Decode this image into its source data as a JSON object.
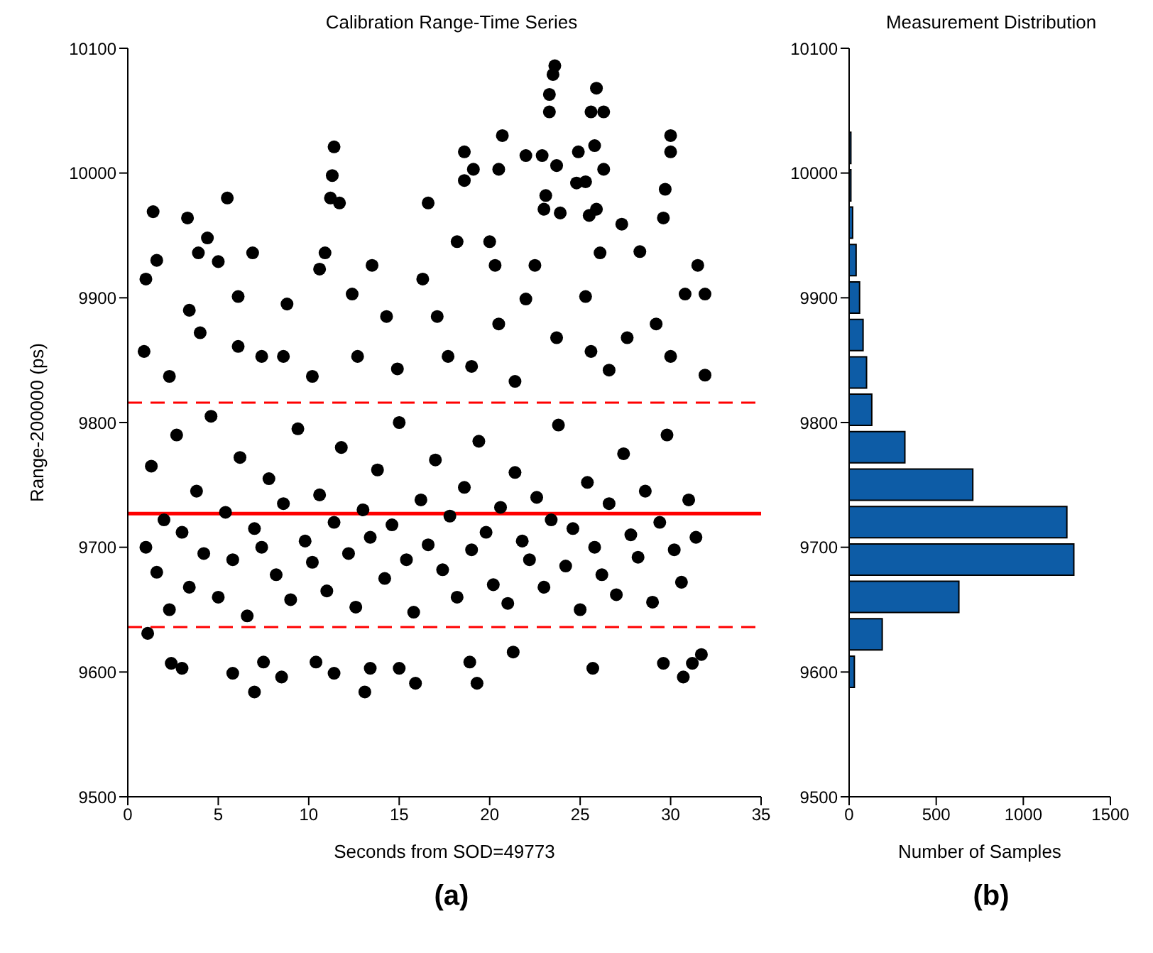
{
  "chart_data": [
    {
      "type": "scatter",
      "title": "Calibration Range-Time Series",
      "xlabel": "Seconds from SOD=49773",
      "ylabel": "Range-200000 (ps)",
      "color": "#000000",
      "marker": "circle",
      "xlim": [
        0,
        35
      ],
      "xticks": [
        0,
        5,
        10,
        15,
        20,
        25,
        30,
        35
      ],
      "ylim": [
        9500,
        10100
      ],
      "yticks": [
        9500,
        9600,
        9700,
        9800,
        9900,
        10000,
        10100
      ],
      "x": [
        23.6,
        23.5,
        23.3,
        23.3,
        25.9,
        25.6,
        26.3,
        25.8,
        26.3,
        20.7,
        30.0,
        30.0,
        11.4,
        11.3,
        11.2,
        11.7,
        5.5,
        1.4,
        3.3,
        18.6,
        18.6,
        19.1,
        20.5,
        22.0,
        22.9,
        23.7,
        24.9,
        24.8,
        25.3,
        23.0,
        23.1,
        25.5,
        29.7,
        29.6,
        16.6,
        23.9,
        25.9,
        4.4,
        3.9,
        6.9,
        5.0,
        1.6,
        1.0,
        10.9,
        10.6,
        13.5,
        16.3,
        18.2,
        20.0,
        20.3,
        22.5,
        26.1,
        28.3,
        31.5,
        31.9,
        27.3,
        22.0,
        3.4,
        6.1,
        8.8,
        12.4,
        14.3,
        17.1,
        20.5,
        25.3,
        29.2,
        30.8,
        0.9,
        4.0,
        6.1,
        8.6,
        10.2,
        12.7,
        14.9,
        17.7,
        19.0,
        21.4,
        23.7,
        25.6,
        27.6,
        30.0,
        31.9,
        2.3,
        7.4,
        26.6,
        7.0,
        13.1,
        15.9,
        19.3,
        5.8,
        8.5,
        11.4,
        25.7,
        30.7,
        31.2,
        2.4,
        3.0,
        10.4,
        13.4,
        15.0,
        21.3,
        29.6,
        7.5,
        1.1,
        31.7,
        18.9,
        1.0,
        1.3,
        1.6,
        2.0,
        2.3,
        2.7,
        3.0,
        3.4,
        3.8,
        4.2,
        4.6,
        5.0,
        5.4,
        5.8,
        6.2,
        6.6,
        7.0,
        7.4,
        7.8,
        8.2,
        8.6,
        9.0,
        9.4,
        9.8,
        10.2,
        10.6,
        11.0,
        11.4,
        11.8,
        12.2,
        12.6,
        13.0,
        13.4,
        13.8,
        14.2,
        14.6,
        15.0,
        15.4,
        15.8,
        16.2,
        16.6,
        17.0,
        17.4,
        17.8,
        18.2,
        18.6,
        19.0,
        19.4,
        19.8,
        20.2,
        20.6,
        21.0,
        21.4,
        21.8,
        22.2,
        22.6,
        23.0,
        23.4,
        23.8,
        24.2,
        24.6,
        25.0,
        25.4,
        25.8,
        26.2,
        26.6,
        27.0,
        27.4,
        27.8,
        28.2,
        28.6,
        29.0,
        29.4,
        29.8,
        30.2,
        30.6,
        31.0,
        31.4
      ],
      "values": [
        10086,
        10079,
        10063,
        10049,
        10068,
        10049,
        10049,
        10022,
        10003,
        10030,
        10030,
        10017,
        10021,
        9998,
        9980,
        9976,
        9980,
        9969,
        9964,
        10017,
        9994,
        10003,
        10003,
        10014,
        10014,
        10006,
        10017,
        9992,
        9993,
        9971,
        9982,
        9966,
        9987,
        9964,
        9976,
        9968,
        9971,
        9948,
        9936,
        9936,
        9929,
        9930,
        9915,
        9936,
        9923,
        9926,
        9915,
        9945,
        9945,
        9926,
        9926,
        9936,
        9937,
        9926,
        9903,
        9959,
        9899,
        9890,
        9901,
        9895,
        9903,
        9885,
        9885,
        9879,
        9901,
        9879,
        9903,
        9857,
        9872,
        9861,
        9853,
        9837,
        9853,
        9843,
        9853,
        9845,
        9833,
        9868,
        9857,
        9868,
        9853,
        9838,
        9837,
        9853,
        9842,
        9584,
        9584,
        9591,
        9591,
        9599,
        9596,
        9599,
        9603,
        9596,
        9607,
        9607,
        9603,
        9608,
        9603,
        9603,
        9616,
        9607,
        9608,
        9631,
        9614,
        9608,
        9700,
        9765,
        9680,
        9722,
        9650,
        9790,
        9712,
        9668,
        9745,
        9695,
        9805,
        9660,
        9728,
        9690,
        9772,
        9645,
        9715,
        9700,
        9755,
        9678,
        9735,
        9658,
        9795,
        9705,
        9688,
        9742,
        9665,
        9720,
        9780,
        9695,
        9652,
        9730,
        9708,
        9762,
        9675,
        9718,
        9800,
        9690,
        9648,
        9738,
        9702,
        9770,
        9682,
        9725,
        9660,
        9748,
        9698,
        9785,
        9712,
        9670,
        9732,
        9655,
        9760,
        9705,
        9690,
        9740,
        9668,
        9722,
        9798,
        9685,
        9715,
        9650,
        9752,
        9700,
        9678,
        9735,
        9662,
        9775,
        9710,
        9692,
        9745,
        9656,
        9720,
        9790,
        9698,
        9672,
        9738,
        9708
      ],
      "ref_lines": [
        {
          "axis": "y",
          "value": 9816,
          "color": "#ff0000",
          "line_style": "dashed"
        },
        {
          "axis": "y",
          "value": 9727,
          "color": "#ff0000",
          "line_style": "solid"
        },
        {
          "axis": "y",
          "value": 9636,
          "color": "#ff0000",
          "line_style": "dashed"
        }
      ],
      "annotations": [
        "(a)"
      ]
    },
    {
      "type": "histogram",
      "orientation": "horizontal",
      "title": "Measurement Distribution",
      "xlabel": "Number of Samples",
      "color": "#0d5ca6",
      "xlim": [
        0,
        1500
      ],
      "xticks": [
        0,
        500,
        1000,
        1500
      ],
      "ylim": [
        9500,
        10100
      ],
      "yticks": [
        9500,
        9600,
        9700,
        9800,
        9900,
        10000,
        10100
      ],
      "bins": [
        9585,
        9615,
        9645,
        9675,
        9705,
        9735,
        9765,
        9795,
        9825,
        9855,
        9885,
        9915,
        9945,
        9975,
        10005,
        10035
      ],
      "values": [
        30,
        190,
        630,
        1290,
        1250,
        710,
        320,
        130,
        100,
        80,
        60,
        40,
        20,
        10,
        10
      ],
      "annotations": [
        "(b)"
      ]
    }
  ]
}
